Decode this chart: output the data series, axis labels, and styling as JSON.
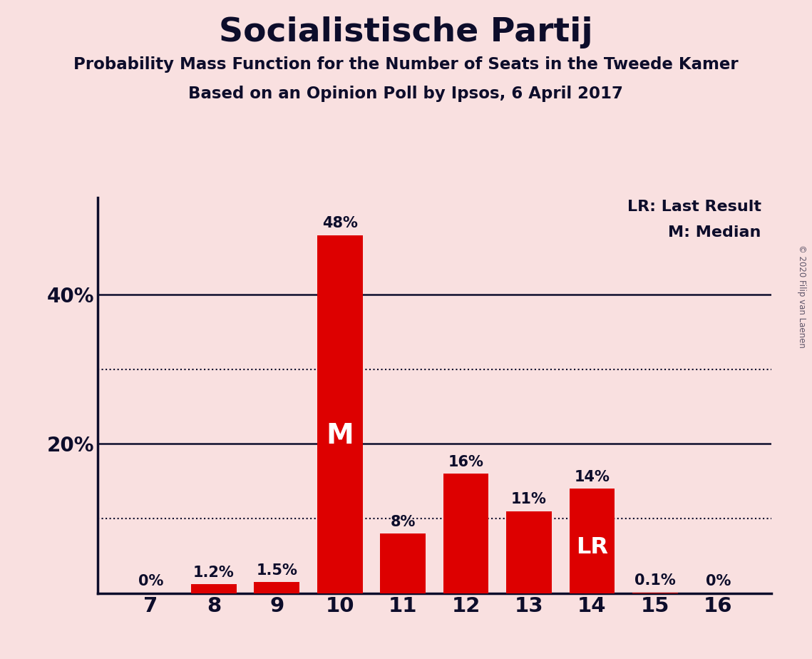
{
  "title": "Socialistische Partij",
  "subtitle1": "Probability Mass Function for the Number of Seats in the Tweede Kamer",
  "subtitle2": "Based on an Opinion Poll by Ipsos, 6 April 2017",
  "copyright": "© 2020 Filip van Laenen",
  "seats": [
    7,
    8,
    9,
    10,
    11,
    12,
    13,
    14,
    15,
    16
  ],
  "probabilities": [
    0.0,
    1.2,
    1.5,
    48.0,
    8.0,
    16.0,
    11.0,
    14.0,
    0.1,
    0.0
  ],
  "labels": [
    "0%",
    "1.2%",
    "1.5%",
    "48%",
    "8%",
    "16%",
    "11%",
    "14%",
    "0.1%",
    "0%"
  ],
  "bar_color": "#dd0000",
  "background_color": "#f9e0e0",
  "title_color": "#0d0d2b",
  "median_seat": 10,
  "last_result_seat": 14,
  "yticks": [
    0,
    20,
    40
  ],
  "ytick_labels": [
    "",
    "20%",
    "40%"
  ],
  "solid_lines": [
    20,
    40
  ],
  "dotted_lines": [
    10,
    30
  ],
  "ylim": [
    0,
    53
  ],
  "legend_text": "LR: Last Result\nM: Median"
}
